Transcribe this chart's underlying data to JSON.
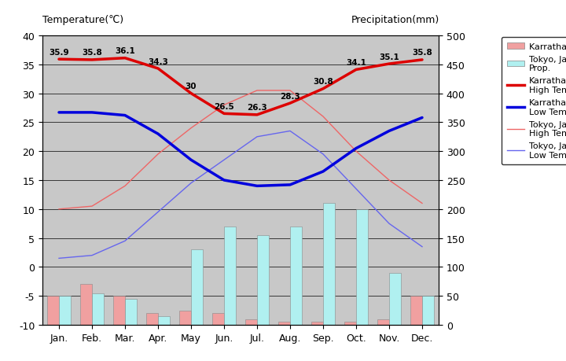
{
  "months": [
    "Jan.",
    "Feb.",
    "Mar.",
    "Apr.",
    "May",
    "Jun.",
    "Jul.",
    "Aug.",
    "Sep.",
    "Oct.",
    "Nov.",
    "Dec."
  ],
  "karratha_high": [
    35.9,
    35.8,
    36.1,
    34.3,
    30.0,
    26.5,
    26.3,
    28.3,
    30.8,
    34.1,
    35.1,
    35.8
  ],
  "karratha_low": [
    26.7,
    26.7,
    26.2,
    23.0,
    18.5,
    15.0,
    14.0,
    14.2,
    16.5,
    20.5,
    23.5,
    25.8
  ],
  "tokyo_high": [
    10.0,
    10.5,
    14.0,
    19.5,
    24.0,
    28.0,
    30.5,
    30.5,
    26.0,
    20.0,
    15.0,
    11.0
  ],
  "tokyo_low": [
    1.5,
    2.0,
    4.5,
    9.5,
    14.5,
    18.5,
    22.5,
    23.5,
    19.5,
    13.5,
    7.5,
    3.5
  ],
  "karratha_high_labels": [
    "35.9",
    "35.8",
    "36.1",
    "34.3",
    "30",
    "26.5",
    "26.3",
    "28.3",
    "30.8",
    "34.1",
    "35.1",
    "35.8"
  ],
  "karratha_bar_bottom": [
    -10,
    -10,
    -10,
    -10,
    -10,
    -10,
    -10,
    -10,
    -10,
    -10,
    -10,
    -10
  ],
  "karratha_bar_top": [
    -5.0,
    -3.0,
    -5.0,
    -8.0,
    -7.5,
    -8.0,
    -9.0,
    -9.5,
    -9.5,
    -9.5,
    -9.0,
    -5.0
  ],
  "tokyo_bar_bottom": [
    -10,
    -10,
    -10,
    -10,
    -10,
    -10,
    -10,
    -10,
    -10,
    -10,
    -10,
    -10
  ],
  "tokyo_bar_top": [
    -5.0,
    -4.5,
    -5.5,
    -8.5,
    3.0,
    7.0,
    5.5,
    7.0,
    11.0,
    10.0,
    -1.0,
    -5.0
  ],
  "bg_color": "#c8c8c8",
  "title_left": "Temperature(℃)",
  "title_right": "Precipitation(mm)",
  "ylim_left": [
    -10,
    40
  ],
  "ylim_right": [
    0,
    500
  ],
  "yticks_left": [
    40,
    35,
    30,
    25,
    20,
    15,
    10,
    5,
    0,
    -5,
    -10
  ],
  "yticks_right": [
    500,
    450,
    400,
    350,
    300,
    250,
    200,
    150,
    100,
    50,
    0
  ],
  "karratha_high_color": "#dd0000",
  "karratha_low_color": "#0000dd",
  "tokyo_high_color": "#ee6666",
  "tokyo_low_color": "#6666ee",
  "karratha_bar_color": "#f0a0a0",
  "tokyo_bar_color": "#b0f0f0",
  "fig_bg": "#ffffff"
}
